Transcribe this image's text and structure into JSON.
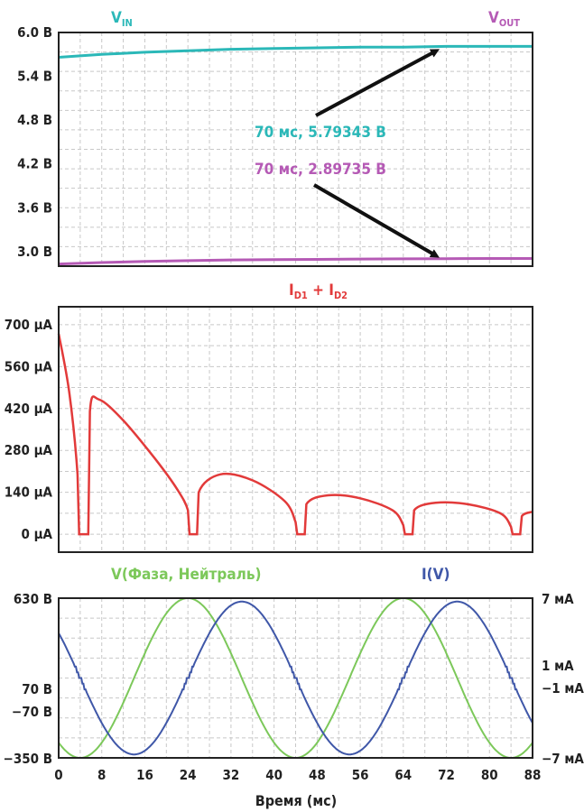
{
  "chart_data": [
    {
      "type": "line",
      "ylim": [
        2.8,
        6.0
      ],
      "xlim": [
        0,
        88
      ],
      "y_ticks": [
        "6.0 В",
        "5.4 В",
        "4.8 В",
        "4.2 В",
        "3.6 В",
        "3.0 В"
      ],
      "y_tick_values": [
        6.0,
        5.4,
        4.8,
        4.2,
        3.6,
        3.0
      ],
      "grid": true,
      "series": [
        {
          "name": "V_IN",
          "label_main": "V",
          "label_sub": "IN",
          "color": "#2bb8b8",
          "x": [
            0,
            8,
            16,
            24,
            32,
            40,
            48,
            56,
            64,
            72,
            80,
            88
          ],
          "y": [
            5.66,
            5.7,
            5.73,
            5.75,
            5.77,
            5.78,
            5.79,
            5.8,
            5.8,
            5.81,
            5.81,
            5.81
          ]
        },
        {
          "name": "V_OUT",
          "label_main": "V",
          "label_sub": "OUT",
          "color": "#b55ab5",
          "x": [
            0,
            8,
            16,
            24,
            32,
            40,
            48,
            56,
            64,
            72,
            80,
            88
          ],
          "y": [
            2.83,
            2.85,
            2.865,
            2.875,
            2.885,
            2.89,
            2.893,
            2.897,
            2.9,
            2.902,
            2.905,
            2.905
          ]
        }
      ],
      "annotations": [
        {
          "text": "70 мс, 5.79343 В",
          "x": 70,
          "y": 5.79343,
          "color": "#2bb8b8"
        },
        {
          "text": "70 мс, 2.89735 В",
          "x": 70,
          "y": 2.89735,
          "color": "#b55ab5"
        }
      ]
    },
    {
      "type": "line",
      "ylim": [
        -60,
        760
      ],
      "xlim": [
        0,
        88
      ],
      "y_ticks": [
        "700 µA",
        "560 µA",
        "420 µA",
        "280 µA",
        "140 µA",
        "0 µA"
      ],
      "y_tick_values": [
        700,
        560,
        420,
        280,
        140,
        0
      ],
      "grid": true,
      "series": [
        {
          "name": "I_D1 + I_D2",
          "label_parts": [
            "I",
            "D1",
            " + I",
            "D2"
          ],
          "color": "#e23a3a",
          "x": [
            0,
            2,
            3.5,
            3.8,
            5.5,
            5.8,
            7.5,
            12,
            18,
            22,
            24,
            24.3,
            25.7,
            26,
            30,
            36,
            42,
            44,
            44.3,
            45.7,
            46,
            50,
            56,
            62,
            64,
            64.3,
            65.7,
            66,
            70,
            76,
            82,
            84,
            84.3,
            85.7,
            86,
            88
          ],
          "y": [
            670,
            470,
            200,
            0,
            0,
            410,
            450,
            380,
            250,
            150,
            80,
            0,
            0,
            140,
            200,
            180,
            110,
            40,
            0,
            0,
            100,
            130,
            120,
            80,
            30,
            0,
            0,
            80,
            105,
            100,
            70,
            25,
            0,
            0,
            60,
            75
          ]
        }
      ]
    },
    {
      "type": "line",
      "xlim": [
        0,
        88
      ],
      "ylim_left": [
        -350,
        630
      ],
      "ylim_right": [
        -7,
        7
      ],
      "y_ticks_left": [
        "630 В",
        "70 В",
        "−70 В",
        "−350 В"
      ],
      "y_tick_values_left": [
        630,
        70,
        -70,
        -350
      ],
      "y_ticks_right": [
        "7 мА",
        "1 мА",
        "−1 мА",
        "−7 мА"
      ],
      "y_tick_values_right": [
        7,
        1,
        -1,
        -7
      ],
      "x_ticks": [
        0,
        8,
        16,
        24,
        32,
        40,
        48,
        56,
        64,
        72,
        80,
        88
      ],
      "xlabel": "Время (мс)",
      "grid": true,
      "series": [
        {
          "name": "V(Фаза, Нейтраль)",
          "axis": "left",
          "color": "#7cc85a",
          "amplitude": 490,
          "offset": 140,
          "period_ms": 40,
          "peak_ms": 24
        },
        {
          "name": "I(V)",
          "axis": "right",
          "color": "#3f57a8",
          "amplitude": 6.7,
          "offset": 0,
          "period_ms": 40,
          "peak_ms": 34
        }
      ]
    }
  ]
}
